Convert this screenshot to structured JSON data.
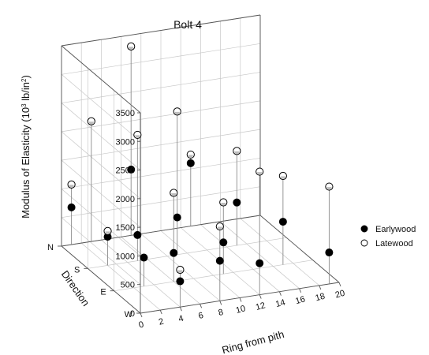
{
  "chart_data": {
    "type": "scatter3d",
    "title": "Bolt 4",
    "ylabel": "Modulus of Elasticity (10",
    "ylabel_exp": "3",
    "ylabel_unit": " lb/in",
    "ylabel_unit_exp": "2",
    "ylabel_close": ")",
    "xlabel": "Ring from pith",
    "zlabel": "Direction",
    "y_ticks": [
      "0",
      "500",
      "1000",
      "1500",
      "2000",
      "2500",
      "3000",
      "3500"
    ],
    "ylim": [
      0,
      3500
    ],
    "x_ticks": [
      "0",
      "2",
      "4",
      "6",
      "8",
      "10",
      "12",
      "14",
      "16",
      "18",
      "20"
    ],
    "xlim": [
      0,
      20
    ],
    "z_categories": [
      "N",
      "S",
      "E",
      "W"
    ],
    "legend_position": "right",
    "grid": true,
    "series": [
      {
        "name": "Earlywood",
        "marker": "filled-circle",
        "color": "#000000",
        "points": [
          {
            "ring": 1,
            "direction": "N",
            "value": 650
          },
          {
            "ring": 2,
            "direction": "S",
            "value": 500
          },
          {
            "ring": 3,
            "direction": "E",
            "value": 500
          },
          {
            "ring": 4,
            "direction": "W",
            "value": 450
          },
          {
            "ring": 5,
            "direction": "S",
            "value": 450
          },
          {
            "ring": 6,
            "direction": "E",
            "value": 500
          },
          {
            "ring": 7,
            "direction": "N",
            "value": 1150
          },
          {
            "ring": 8,
            "direction": "W",
            "value": 700
          },
          {
            "ring": 9,
            "direction": "S",
            "value": 650
          },
          {
            "ring": 11,
            "direction": "E",
            "value": 550
          },
          {
            "ring": 12,
            "direction": "W",
            "value": 550
          },
          {
            "ring": 13,
            "direction": "N",
            "value": 1100
          },
          {
            "ring": 15,
            "direction": "S",
            "value": 750
          },
          {
            "ring": 17,
            "direction": "E",
            "value": 750
          },
          {
            "ring": 19,
            "direction": "W",
            "value": 550
          }
        ]
      },
      {
        "name": "Latewood",
        "marker": "open-circle",
        "color": "#ffffff",
        "points": [
          {
            "ring": 1,
            "direction": "N",
            "value": 1050
          },
          {
            "ring": 2,
            "direction": "S",
            "value": 600
          },
          {
            "ring": 3,
            "direction": "N",
            "value": 2100
          },
          {
            "ring": 4,
            "direction": "W",
            "value": 650
          },
          {
            "ring": 5,
            "direction": "S",
            "value": 2200
          },
          {
            "ring": 6,
            "direction": "E",
            "value": 1550
          },
          {
            "ring": 7,
            "direction": "N",
            "value": 3300
          },
          {
            "ring": 8,
            "direction": "W",
            "value": 1300
          },
          {
            "ring": 9,
            "direction": "S",
            "value": 2500
          },
          {
            "ring": 11,
            "direction": "E",
            "value": 1250
          },
          {
            "ring": 12,
            "direction": "W",
            "value": 2150
          },
          {
            "ring": 13,
            "direction": "N",
            "value": 1250
          },
          {
            "ring": 15,
            "direction": "S",
            "value": 1650
          },
          {
            "ring": 17,
            "direction": "E",
            "value": 1550
          },
          {
            "ring": 19,
            "direction": "W",
            "value": 1700
          }
        ]
      }
    ]
  }
}
